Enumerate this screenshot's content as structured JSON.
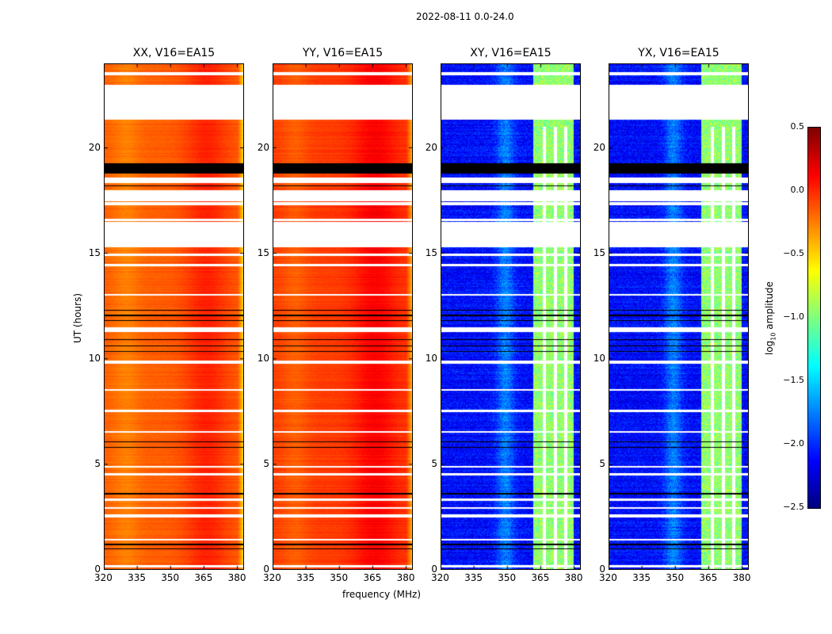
{
  "chart_data": {
    "type": "heatmap",
    "title": "2022-08-11 0.0-24.0",
    "xlabel": "frequency (MHz)",
    "ylabel": "UT (hours)",
    "colorbar_label": "log10 amplitude",
    "colorbar_label_main": "log",
    "colorbar_label_sub": "10",
    "colorbar_label_rest": " amplitude",
    "colormap": "jet",
    "clim": [
      -2.5,
      0.5
    ],
    "colorbar_ticks": [
      "0.5",
      "0.0",
      "−0.5",
      "−1.0",
      "−1.5",
      "−2.0",
      "−2.5"
    ],
    "colorbar_tick_values": [
      0.5,
      0.0,
      -0.5,
      -1.0,
      -1.5,
      -2.0,
      -2.5
    ],
    "xlim": [
      320,
      383
    ],
    "ylim": [
      0,
      24
    ],
    "xticks": [
      320,
      335,
      350,
      365,
      380
    ],
    "xtick_labels": [
      "320",
      "335",
      "350",
      "365",
      "380"
    ],
    "yticks": [
      0,
      5,
      10,
      15,
      20
    ],
    "ytick_labels": [
      "0",
      "5",
      "10",
      "15",
      "20"
    ],
    "panels": [
      {
        "title": "XX, V16=EA15",
        "kind": "parallel",
        "level": -0.15
      },
      {
        "title": "YY, V16=EA15",
        "kind": "parallel",
        "level": -0.05
      },
      {
        "title": "XY, V16=EA15",
        "kind": "cross",
        "level": -2.1
      },
      {
        "title": "YX, V16=EA15",
        "kind": "cross",
        "level": -2.1
      }
    ],
    "flagged_ut_hours": [
      [
        23.45,
        23.6
      ],
      [
        21.35,
        23.0
      ],
      [
        18.35,
        18.6
      ],
      [
        17.5,
        18.0
      ],
      [
        17.3,
        17.45
      ],
      [
        16.55,
        16.65
      ],
      [
        15.3,
        16.5
      ],
      [
        14.9,
        15.0
      ],
      [
        14.4,
        14.5
      ],
      [
        13.0,
        13.1
      ],
      [
        11.3,
        11.5
      ],
      [
        9.8,
        9.95
      ],
      [
        8.5,
        8.6
      ],
      [
        7.5,
        7.6
      ],
      [
        6.5,
        6.6
      ],
      [
        4.85,
        4.95
      ],
      [
        4.5,
        4.6
      ],
      [
        3.3,
        3.4
      ],
      [
        2.9,
        3.0
      ],
      [
        2.5,
        2.65
      ],
      [
        1.4,
        1.5
      ],
      [
        0.15,
        0.25
      ]
    ],
    "black_ut_hours": [
      [
        18.8,
        19.3
      ],
      [
        18.2,
        18.25
      ],
      [
        12.3,
        12.35
      ],
      [
        12.05,
        12.1
      ],
      [
        11.8,
        11.85
      ],
      [
        10.9,
        10.95
      ],
      [
        10.6,
        10.65
      ],
      [
        10.35,
        10.4
      ],
      [
        6.05,
        6.1
      ],
      [
        5.8,
        5.85
      ],
      [
        3.6,
        3.65
      ],
      [
        1.2,
        1.25
      ],
      [
        1.0,
        1.05
      ]
    ]
  }
}
